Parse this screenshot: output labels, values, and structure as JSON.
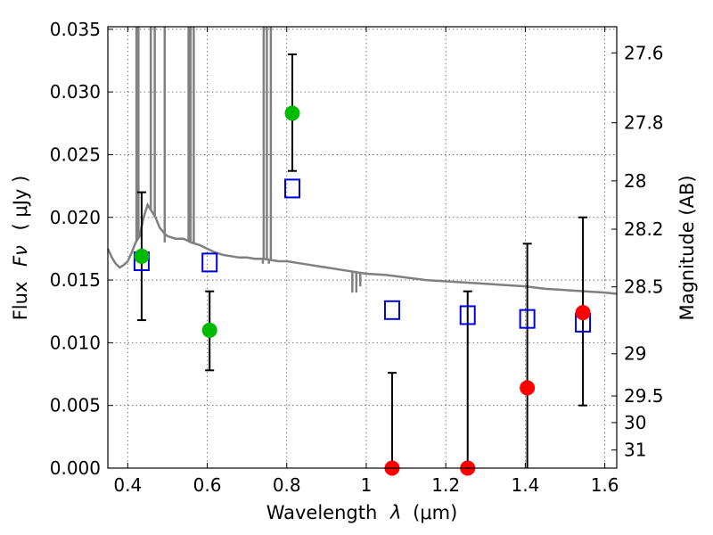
{
  "chart_data": {
    "type": "scatter",
    "xlabel": "Wavelength",
    "xlabel_symbol": "λ",
    "xlabel_unit": "(μm)",
    "ylabel": "Flux",
    "ylabel_symbol": "Fν",
    "ylabel_unit": "( μJy )",
    "y2label": "Magnitude (AB)",
    "xlim": [
      0.35,
      1.63
    ],
    "ylim": [
      0.0,
      0.0352
    ],
    "grid": true,
    "x_ticks": [
      {
        "value": 0.4,
        "label": "0.4"
      },
      {
        "value": 0.6,
        "label": "0.6"
      },
      {
        "value": 0.8,
        "label": "0.8"
      },
      {
        "value": 1.0,
        "label": "1"
      },
      {
        "value": 1.2,
        "label": "1.2"
      },
      {
        "value": 1.4,
        "label": "1.4"
      },
      {
        "value": 1.6,
        "label": "1.6"
      }
    ],
    "y_ticks": [
      {
        "value": 0.0,
        "label": "0.000"
      },
      {
        "value": 0.005,
        "label": "0.005"
      },
      {
        "value": 0.01,
        "label": "0.010"
      },
      {
        "value": 0.015,
        "label": "0.015"
      },
      {
        "value": 0.02,
        "label": "0.020"
      },
      {
        "value": 0.025,
        "label": "0.025"
      },
      {
        "value": 0.03,
        "label": "0.030"
      },
      {
        "value": 0.035,
        "label": "0.035"
      }
    ],
    "y2_ticks": [
      {
        "value": 27.6,
        "label": "27.6"
      },
      {
        "value": 27.8,
        "label": "27.8"
      },
      {
        "value": 28.0,
        "label": "28"
      },
      {
        "value": 28.2,
        "label": "28.2"
      },
      {
        "value": 28.5,
        "label": "28.5"
      },
      {
        "value": 29.0,
        "label": "29"
      },
      {
        "value": 29.5,
        "label": "29.5"
      },
      {
        "value": 30.0,
        "label": "30"
      },
      {
        "value": 31.0,
        "label": "31"
      }
    ],
    "colors": {
      "sed": "#808080",
      "detection": "#00bb00",
      "nondetection": "#ff0000",
      "model": "#0000dd",
      "errorbar": "#000000"
    },
    "sed": {
      "x": [
        0.35,
        0.36,
        0.37,
        0.38,
        0.39,
        0.4,
        0.41,
        0.42,
        0.43,
        0.44,
        0.45,
        0.46,
        0.47,
        0.48,
        0.49,
        0.5,
        0.52,
        0.54,
        0.56,
        0.58,
        0.6,
        0.62,
        0.64,
        0.66,
        0.68,
        0.7,
        0.72,
        0.74,
        0.76,
        0.78,
        0.8,
        0.82,
        0.84,
        0.86,
        0.88,
        0.9,
        0.92,
        0.94,
        0.96,
        0.98,
        1.0,
        1.05,
        1.1,
        1.15,
        1.2,
        1.25,
        1.3,
        1.35,
        1.4,
        1.45,
        1.5,
        1.55,
        1.6,
        1.63
      ],
      "y": [
        0.0175,
        0.0168,
        0.0163,
        0.016,
        0.0162,
        0.0165,
        0.0172,
        0.018,
        0.0185,
        0.02,
        0.021,
        0.0205,
        0.02,
        0.0192,
        0.0188,
        0.0185,
        0.0183,
        0.0183,
        0.018,
        0.0178,
        0.0175,
        0.0172,
        0.017,
        0.0169,
        0.0168,
        0.0168,
        0.0167,
        0.0167,
        0.0166,
        0.0165,
        0.0165,
        0.0164,
        0.0163,
        0.0162,
        0.0161,
        0.016,
        0.0159,
        0.0158,
        0.0157,
        0.0156,
        0.0155,
        0.0154,
        0.0152,
        0.015,
        0.0149,
        0.0148,
        0.0147,
        0.0146,
        0.0145,
        0.0143,
        0.0142,
        0.0141,
        0.014,
        0.0139
      ],
      "emission_lines": [
        {
          "x": 0.422,
          "top": 0.0352
        },
        {
          "x": 0.427,
          "top": 0.0352
        },
        {
          "x": 0.458,
          "top": 0.0352
        },
        {
          "x": 0.468,
          "top": 0.0352
        },
        {
          "x": 0.493,
          "top": 0.0352
        },
        {
          "x": 0.553,
          "top": 0.0352
        },
        {
          "x": 0.558,
          "top": 0.0352
        },
        {
          "x": 0.566,
          "top": 0.0352
        },
        {
          "x": 0.742,
          "top": 0.0352
        },
        {
          "x": 0.75,
          "top": 0.0352
        },
        {
          "x": 0.76,
          "top": 0.0352
        }
      ],
      "absorption_lines": [
        {
          "x": 0.493,
          "bottom": 0.018
        },
        {
          "x": 0.553,
          "bottom": 0.0182
        },
        {
          "x": 0.74,
          "bottom": 0.0163
        },
        {
          "x": 0.755,
          "bottom": 0.0163
        },
        {
          "x": 0.965,
          "bottom": 0.014
        },
        {
          "x": 0.975,
          "bottom": 0.014
        },
        {
          "x": 0.985,
          "bottom": 0.0145
        }
      ]
    },
    "detections": [
      {
        "x": 0.435,
        "y": 0.0169,
        "err_low": 0.0118,
        "err_high": 0.022
      },
      {
        "x": 0.606,
        "y": 0.011,
        "err_low": 0.0078,
        "err_high": 0.0141
      },
      {
        "x": 0.814,
        "y": 0.0283,
        "err_low": 0.0237,
        "err_high": 0.033
      }
    ],
    "nondetections": [
      {
        "x": 1.065,
        "y": 0.0,
        "err_low": 0.0,
        "err_high": 0.0076
      },
      {
        "x": 1.255,
        "y": 0.0,
        "err_low": 0.0,
        "err_high": 0.0141
      },
      {
        "x": 1.405,
        "y": 0.0064,
        "err_low": 0.0,
        "err_high": 0.0179
      },
      {
        "x": 1.545,
        "y": 0.0124,
        "err_low": 0.005,
        "err_high": 0.02
      }
    ],
    "model_photometry": [
      {
        "x": 0.435,
        "y": 0.0165
      },
      {
        "x": 0.606,
        "y": 0.0164
      },
      {
        "x": 0.814,
        "y": 0.0223
      },
      {
        "x": 1.065,
        "y": 0.0126
      },
      {
        "x": 1.255,
        "y": 0.0122
      },
      {
        "x": 1.405,
        "y": 0.0119
      },
      {
        "x": 1.545,
        "y": 0.0116
      }
    ]
  }
}
